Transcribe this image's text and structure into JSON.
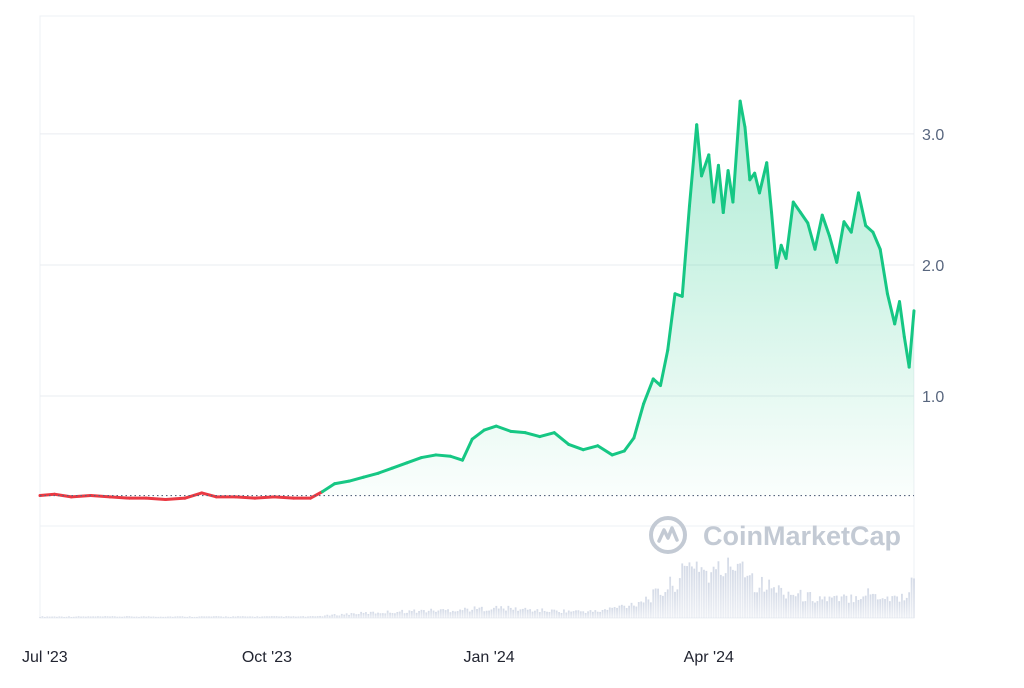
{
  "watermark": {
    "text": "CoinMarketCap",
    "logo_icon": "coinmarketcap-logo-icon"
  },
  "colors": {
    "up_line": "#16c784",
    "down_line": "#ea3943",
    "volume": "#cfd6e4",
    "grid": "#e9ecf1",
    "baseline": "#58667e"
  },
  "chart_data": {
    "type": "area",
    "title": "",
    "xlabel": "",
    "ylabel": "",
    "x_range": [
      "2023-06-29",
      "2024-06-25"
    ],
    "ylim": [
      0.0,
      3.9
    ],
    "y_ticks": [
      {
        "value": 1.0,
        "label": "1.0"
      },
      {
        "value": 2.0,
        "label": "2.0"
      },
      {
        "value": 3.0,
        "label": "3.0"
      }
    ],
    "x_ticks": [
      {
        "date": "2023-07-01",
        "label": "Jul '23"
      },
      {
        "date": "2023-10-01",
        "label": "Oct '23"
      },
      {
        "date": "2024-01-01",
        "label": "Jan '24"
      },
      {
        "date": "2024-04-01",
        "label": "Apr '24"
      }
    ],
    "reference_line": {
      "value": 0.24,
      "style": "dotted"
    },
    "grid": true,
    "legend": "none",
    "series": [
      {
        "points": [
          [
            "2023-06-29",
            0.24
          ],
          [
            "2023-07-05",
            0.25
          ],
          [
            "2023-07-12",
            0.23
          ],
          [
            "2023-07-20",
            0.24
          ],
          [
            "2023-07-28",
            0.23
          ],
          [
            "2023-08-05",
            0.22
          ],
          [
            "2023-08-12",
            0.22
          ],
          [
            "2023-08-20",
            0.21
          ],
          [
            "2023-08-28",
            0.22
          ],
          [
            "2023-09-04",
            0.26
          ],
          [
            "2023-09-10",
            0.23
          ],
          [
            "2023-09-18",
            0.23
          ],
          [
            "2023-09-26",
            0.22
          ],
          [
            "2023-10-04",
            0.23
          ],
          [
            "2023-10-12",
            0.22
          ],
          [
            "2023-10-19",
            0.22
          ],
          [
            "2023-10-24",
            0.27
          ],
          [
            "2023-10-29",
            0.33
          ],
          [
            "2023-11-04",
            0.35
          ],
          [
            "2023-11-10",
            0.38
          ],
          [
            "2023-11-16",
            0.41
          ],
          [
            "2023-11-22",
            0.45
          ],
          [
            "2023-11-28",
            0.49
          ],
          [
            "2023-12-04",
            0.53
          ],
          [
            "2023-12-10",
            0.55
          ],
          [
            "2023-12-16",
            0.54
          ],
          [
            "2023-12-21",
            0.51
          ],
          [
            "2023-12-25",
            0.67
          ],
          [
            "2023-12-30",
            0.74
          ],
          [
            "2024-01-04",
            0.77
          ],
          [
            "2024-01-10",
            0.73
          ],
          [
            "2024-01-16",
            0.72
          ],
          [
            "2024-01-22",
            0.69
          ],
          [
            "2024-01-28",
            0.72
          ],
          [
            "2024-02-03",
            0.63
          ],
          [
            "2024-02-09",
            0.59
          ],
          [
            "2024-02-15",
            0.62
          ],
          [
            "2024-02-21",
            0.55
          ],
          [
            "2024-02-26",
            0.58
          ],
          [
            "2024-03-01",
            0.68
          ],
          [
            "2024-03-05",
            0.94
          ],
          [
            "2024-03-09",
            1.13
          ],
          [
            "2024-03-12",
            1.08
          ],
          [
            "2024-03-15",
            1.35
          ],
          [
            "2024-03-18",
            1.78
          ],
          [
            "2024-03-21",
            1.76
          ],
          [
            "2024-03-24",
            2.45
          ],
          [
            "2024-03-27",
            3.07
          ],
          [
            "2024-03-29",
            2.68
          ],
          [
            "2024-04-01",
            2.84
          ],
          [
            "2024-04-03",
            2.48
          ],
          [
            "2024-04-05",
            2.76
          ],
          [
            "2024-04-07",
            2.4
          ],
          [
            "2024-04-09",
            2.72
          ],
          [
            "2024-04-11",
            2.48
          ],
          [
            "2024-04-14",
            3.25
          ],
          [
            "2024-04-16",
            3.05
          ],
          [
            "2024-04-18",
            2.65
          ],
          [
            "2024-04-20",
            2.7
          ],
          [
            "2024-04-22",
            2.55
          ],
          [
            "2024-04-25",
            2.78
          ],
          [
            "2024-04-27",
            2.4
          ],
          [
            "2024-04-29",
            1.98
          ],
          [
            "2024-05-01",
            2.15
          ],
          [
            "2024-05-03",
            2.05
          ],
          [
            "2024-05-06",
            2.48
          ],
          [
            "2024-05-09",
            2.4
          ],
          [
            "2024-05-12",
            2.32
          ],
          [
            "2024-05-15",
            2.12
          ],
          [
            "2024-05-18",
            2.38
          ],
          [
            "2024-05-21",
            2.22
          ],
          [
            "2024-05-24",
            2.02
          ],
          [
            "2024-05-27",
            2.33
          ],
          [
            "2024-05-30",
            2.25
          ],
          [
            "2024-06-02",
            2.55
          ],
          [
            "2024-06-05",
            2.3
          ],
          [
            "2024-06-08",
            2.25
          ],
          [
            "2024-06-11",
            2.12
          ],
          [
            "2024-06-14",
            1.78
          ],
          [
            "2024-06-17",
            1.55
          ],
          [
            "2024-06-19",
            1.72
          ],
          [
            "2024-06-21",
            1.45
          ],
          [
            "2024-06-23",
            1.22
          ],
          [
            "2024-06-25",
            1.65
          ]
        ]
      }
    ],
    "volume": {
      "points": [
        [
          "2023-06-29",
          0.02
        ],
        [
          "2023-08-01",
          0.02
        ],
        [
          "2023-09-01",
          0.02
        ],
        [
          "2023-10-01",
          0.02
        ],
        [
          "2023-10-20",
          0.02
        ],
        [
          "2023-11-05",
          0.06
        ],
        [
          "2023-11-25",
          0.09
        ],
        [
          "2023-12-15",
          0.11
        ],
        [
          "2024-01-05",
          0.14
        ],
        [
          "2024-01-25",
          0.1
        ],
        [
          "2024-02-15",
          0.09
        ],
        [
          "2024-03-01",
          0.2
        ],
        [
          "2024-03-12",
          0.35
        ],
        [
          "2024-03-20",
          0.55
        ],
        [
          "2024-03-26",
          0.8
        ],
        [
          "2024-04-01",
          0.6
        ],
        [
          "2024-04-10",
          0.7
        ],
        [
          "2024-04-14",
          0.85
        ],
        [
          "2024-04-20",
          0.5
        ],
        [
          "2024-04-29",
          0.4
        ],
        [
          "2024-05-10",
          0.3
        ],
        [
          "2024-05-25",
          0.25
        ],
        [
          "2024-06-05",
          0.35
        ],
        [
          "2024-06-15",
          0.28
        ],
        [
          "2024-06-22",
          0.3
        ],
        [
          "2024-06-25",
          0.55
        ]
      ]
    }
  }
}
